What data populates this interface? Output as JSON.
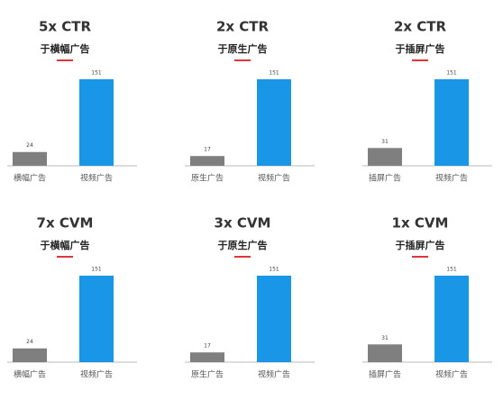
{
  "chart_data": [
    {
      "type": "bar",
      "title": "5x CTR",
      "subtitle": "于横幅广告",
      "categories": [
        "横幅广告",
        "视频广告"
      ],
      "values": [
        24,
        151
      ],
      "colors": [
        "#7f7f7f",
        "#1a96e6"
      ]
    },
    {
      "type": "bar",
      "title": "2x CTR",
      "subtitle": "于原生广告",
      "categories": [
        "原生广告",
        "视频广告"
      ],
      "values": [
        17,
        151
      ],
      "colors": [
        "#7f7f7f",
        "#1a96e6"
      ]
    },
    {
      "type": "bar",
      "title": "2x CTR",
      "subtitle": "于插屏广告",
      "categories": [
        "插屏广告",
        "视频广告"
      ],
      "values": [
        31,
        151
      ],
      "colors": [
        "#7f7f7f",
        "#1a96e6"
      ]
    },
    {
      "type": "bar",
      "title": "7x CVM",
      "subtitle": "于横幅广告",
      "categories": [
        "横幅广告",
        "视频广告"
      ],
      "values": [
        24,
        151
      ],
      "colors": [
        "#7f7f7f",
        "#1a96e6"
      ]
    },
    {
      "type": "bar",
      "title": "3x CVM",
      "subtitle": "于原生广告",
      "categories": [
        "原生广告",
        "视频广告"
      ],
      "values": [
        17,
        151
      ],
      "colors": [
        "#7f7f7f",
        "#1a96e6"
      ]
    },
    {
      "type": "bar",
      "title": "1x CVM",
      "subtitle": "于插屏广告",
      "categories": [
        "插屏广告",
        "视频广告"
      ],
      "values": [
        31,
        151
      ],
      "colors": [
        "#7f7f7f",
        "#1a96e6"
      ]
    }
  ]
}
